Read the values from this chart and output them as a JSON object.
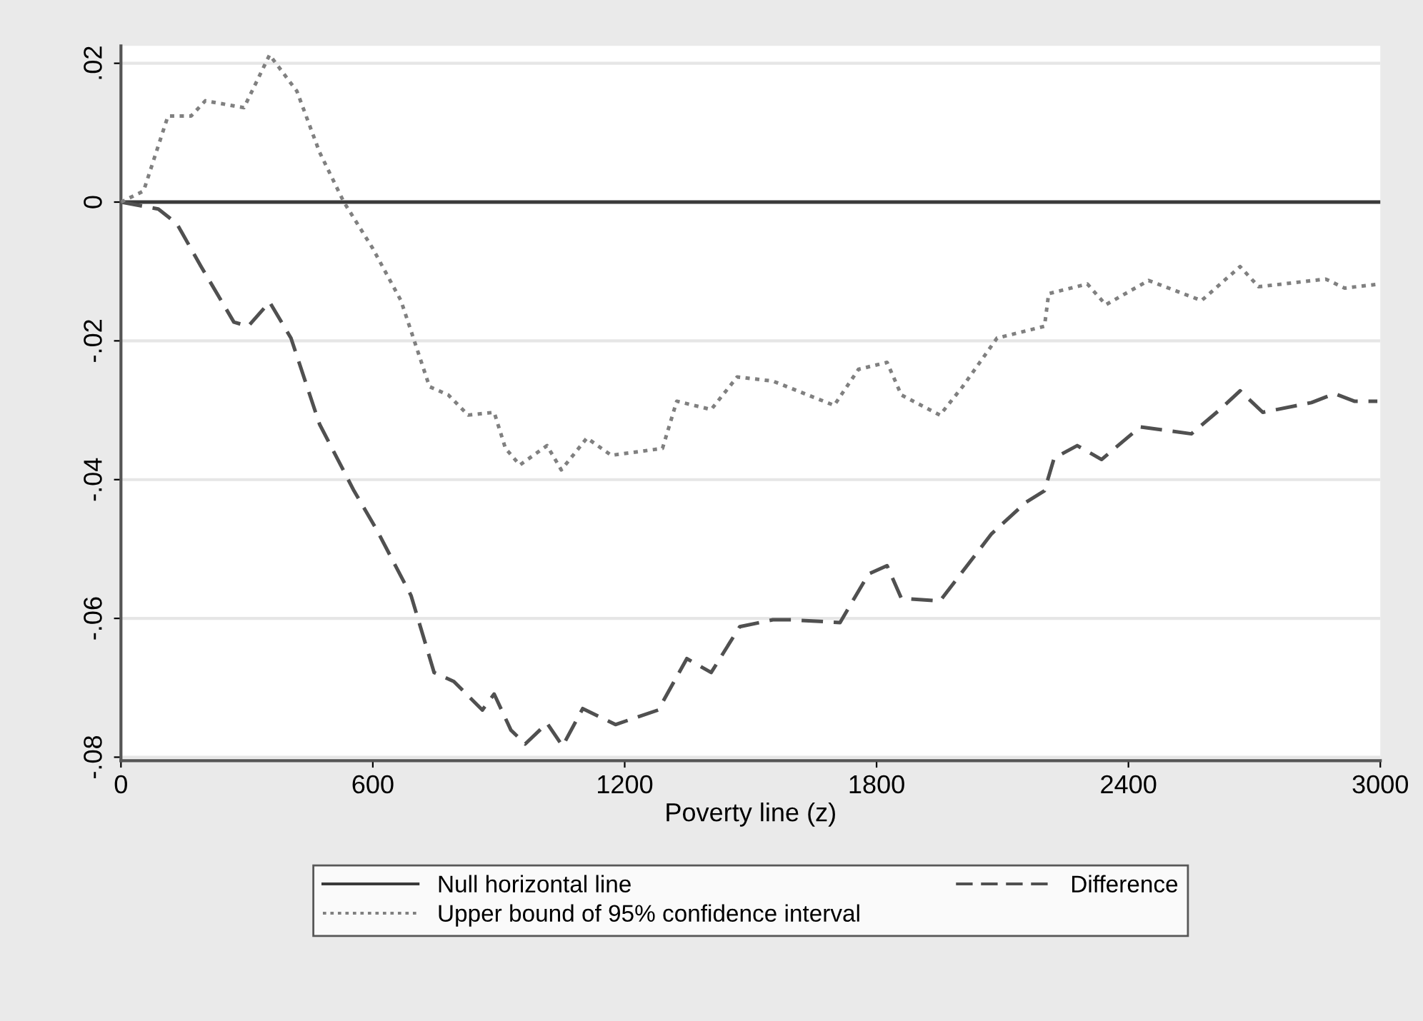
{
  "chart_data": {
    "type": "line",
    "xlabel": "Poverty line (z)",
    "xlim": [
      0,
      3000
    ],
    "xticks": [
      0,
      600,
      1200,
      1800,
      2400,
      3000
    ],
    "ylim": [
      -0.0805,
      0.0225
    ],
    "yticks": [
      {
        "value": -0.08,
        "label": "-.08"
      },
      {
        "value": -0.06,
        "label": "-.06"
      },
      {
        "value": -0.04,
        "label": "-.04"
      },
      {
        "value": -0.02,
        "label": "-.02"
      },
      {
        "value": 0,
        "label": "0"
      },
      {
        "value": 0.02,
        "label": ".02"
      }
    ],
    "grid": "y",
    "legend": "bottom",
    "marker": "none",
    "ref_lines": [
      {
        "axis": "y",
        "value": 0,
        "label": "Null horizontal line",
        "color": "#3a3a3a",
        "line_style": "solid"
      }
    ],
    "series": [
      {
        "name": "Difference",
        "color": "#505050",
        "line_style": "dashed",
        "x": [
          0,
          89,
          133,
          191,
          269,
          303,
          354,
          405,
          473,
          555,
          609,
          691,
          746,
          793,
          861,
          889,
          929,
          963,
          1015,
          1052,
          1100,
          1178,
          1280,
          1348,
          1406,
          1474,
          1553,
          1597,
          1713,
          1781,
          1825,
          1859,
          1951,
          2074,
          2155,
          2200,
          2223,
          2278,
          2336,
          2428,
          2550,
          2618,
          2666,
          2720,
          2836,
          2891,
          2938,
          2993
        ],
        "values": [
          0,
          -0.001,
          -0.0031,
          -0.0093,
          -0.0173,
          -0.0179,
          -0.0144,
          -0.0196,
          -0.032,
          -0.0416,
          -0.0472,
          -0.0567,
          -0.0678,
          -0.0691,
          -0.0732,
          -0.0709,
          -0.0761,
          -0.0781,
          -0.0751,
          -0.0784,
          -0.073,
          -0.0753,
          -0.0732,
          -0.0658,
          -0.0678,
          -0.0612,
          -0.0602,
          -0.0602,
          -0.0606,
          -0.0536,
          -0.0524,
          -0.0571,
          -0.0575,
          -0.0478,
          -0.0433,
          -0.0416,
          -0.0369,
          -0.0351,
          -0.0371,
          -0.0324,
          -0.0334,
          -0.0299,
          -0.0272,
          -0.0303,
          -0.0289,
          -0.0276,
          -0.0287,
          -0.0287
        ]
      },
      {
        "name": "Upper bound of 95% confidence interval",
        "color": "#808080",
        "line_style": "dotted",
        "x": [
          0,
          54,
          112,
          167,
          201,
          293,
          354,
          419,
          473,
          531,
          599,
          667,
          735,
          780,
          827,
          889,
          916,
          950,
          1015,
          1049,
          1110,
          1168,
          1290,
          1324,
          1406,
          1468,
          1553,
          1699,
          1757,
          1825,
          1859,
          1951,
          2005,
          2087,
          2200,
          2210,
          2302,
          2346,
          2448,
          2574,
          2666,
          2710,
          2870,
          2915,
          3000
        ],
        "values": [
          0,
          0.0016,
          0.0124,
          0.0124,
          0.0146,
          0.0136,
          0.0212,
          0.016,
          0.0072,
          0,
          -0.0066,
          -0.0142,
          -0.0266,
          -0.0278,
          -0.0307,
          -0.0303,
          -0.0355,
          -0.0379,
          -0.0351,
          -0.0386,
          -0.034,
          -0.0365,
          -0.0355,
          -0.0287,
          -0.0299,
          -0.0252,
          -0.0258,
          -0.0293,
          -0.0241,
          -0.0231,
          -0.0278,
          -0.0307,
          -0.0266,
          -0.0196,
          -0.0179,
          -0.0132,
          -0.0118,
          -0.0148,
          -0.0113,
          -0.0142,
          -0.0093,
          -0.0122,
          -0.0111,
          -0.0124,
          -0.0118
        ]
      }
    ]
  }
}
